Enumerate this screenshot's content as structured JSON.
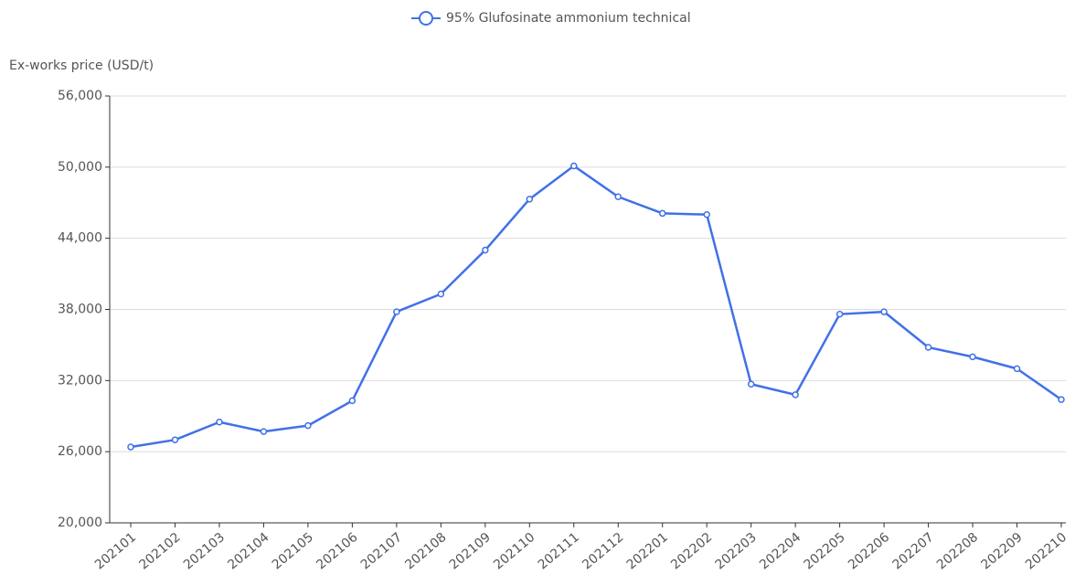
{
  "chart_data": {
    "type": "line",
    "y_axis_label": "Ex-works price (USD/t)",
    "categories": [
      "202101",
      "202102",
      "202103",
      "202104",
      "202105",
      "202106",
      "202107",
      "202108",
      "202109",
      "202110",
      "202111",
      "202112",
      "202201",
      "202202",
      "202203",
      "202204",
      "202205",
      "202206",
      "202207",
      "202208",
      "202209",
      "202210"
    ],
    "series": [
      {
        "name": "95% Glufosinate ammonium technical",
        "color": "#4170e8",
        "values": [
          26400,
          27000,
          28500,
          27700,
          28200,
          30300,
          37800,
          39300,
          43000,
          47300,
          50100,
          47500,
          46100,
          46000,
          31700,
          30800,
          37600,
          37800,
          34800,
          34000,
          33000,
          30400
        ]
      }
    ],
    "ylim": [
      20000,
      56000
    ],
    "yticks": [
      {
        "value": 20000,
        "label": "20,000"
      },
      {
        "value": 26000,
        "label": "26,000"
      },
      {
        "value": 32000,
        "label": "32,000"
      },
      {
        "value": 38000,
        "label": "38,000"
      },
      {
        "value": 44000,
        "label": "44,000"
      },
      {
        "value": 50000,
        "label": "50,000"
      },
      {
        "value": 56000,
        "label": "56,000"
      }
    ],
    "grid": true,
    "legend": "top"
  }
}
